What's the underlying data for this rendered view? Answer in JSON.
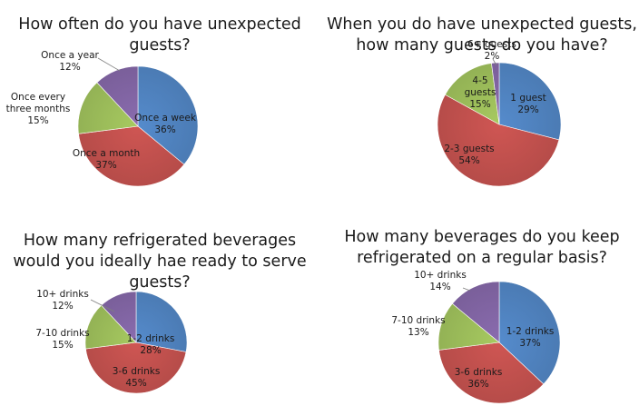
{
  "chart_data": [
    {
      "type": "pie",
      "title": "How often do you have unexpected guests?",
      "slices": [
        {
          "label": "Once a week",
          "percent": "36%",
          "value": 36,
          "color": "#4f81bd"
        },
        {
          "label": "Once a month",
          "percent": "37%",
          "value": 37,
          "color": "#c0504d"
        },
        {
          "label": "Once every three months",
          "percent": "15%",
          "value": 15,
          "color": "#9bbb59"
        },
        {
          "label": "Once a year",
          "percent": "12%",
          "value": 12,
          "color": "#8064a2"
        }
      ]
    },
    {
      "type": "pie",
      "title": "When you do have unexpected guests, how many guests do you have?",
      "slices": [
        {
          "label": "1 guest",
          "percent": "29%",
          "value": 29,
          "color": "#4f81bd"
        },
        {
          "label": "2-3 guests",
          "percent": "54%",
          "value": 54,
          "color": "#c0504d"
        },
        {
          "label": "4-5 guests",
          "percent": "15%",
          "value": 15,
          "color": "#9bbb59"
        },
        {
          "label": "6+ guests",
          "percent": "2%",
          "value": 2,
          "color": "#8064a2"
        }
      ]
    },
    {
      "type": "pie",
      "title": "How many refrigerated beverages would you ideally hae ready to serve guests?",
      "slices": [
        {
          "label": "1-2 drinks",
          "percent": "28%",
          "value": 28,
          "color": "#4f81bd"
        },
        {
          "label": "3-6 drinks",
          "percent": "45%",
          "value": 45,
          "color": "#c0504d"
        },
        {
          "label": "7-10 drinks",
          "percent": "15%",
          "value": 15,
          "color": "#9bbb59"
        },
        {
          "label": "10+ drinks",
          "percent": "12%",
          "value": 12,
          "color": "#8064a2"
        }
      ]
    },
    {
      "type": "pie",
      "title": "How many beverages do you keep refrigerated on a regular basis?",
      "slices": [
        {
          "label": "1-2 drinks",
          "percent": "37%",
          "value": 37,
          "color": "#4f81bd"
        },
        {
          "label": "3-6 drinks",
          "percent": "36%",
          "value": 36,
          "color": "#c0504d"
        },
        {
          "label": "7-10 drinks",
          "percent": "13%",
          "value": 13,
          "color": "#9bbb59"
        },
        {
          "label": "10+ drinks",
          "percent": "14%",
          "value": 14,
          "color": "#8064a2"
        }
      ]
    }
  ]
}
